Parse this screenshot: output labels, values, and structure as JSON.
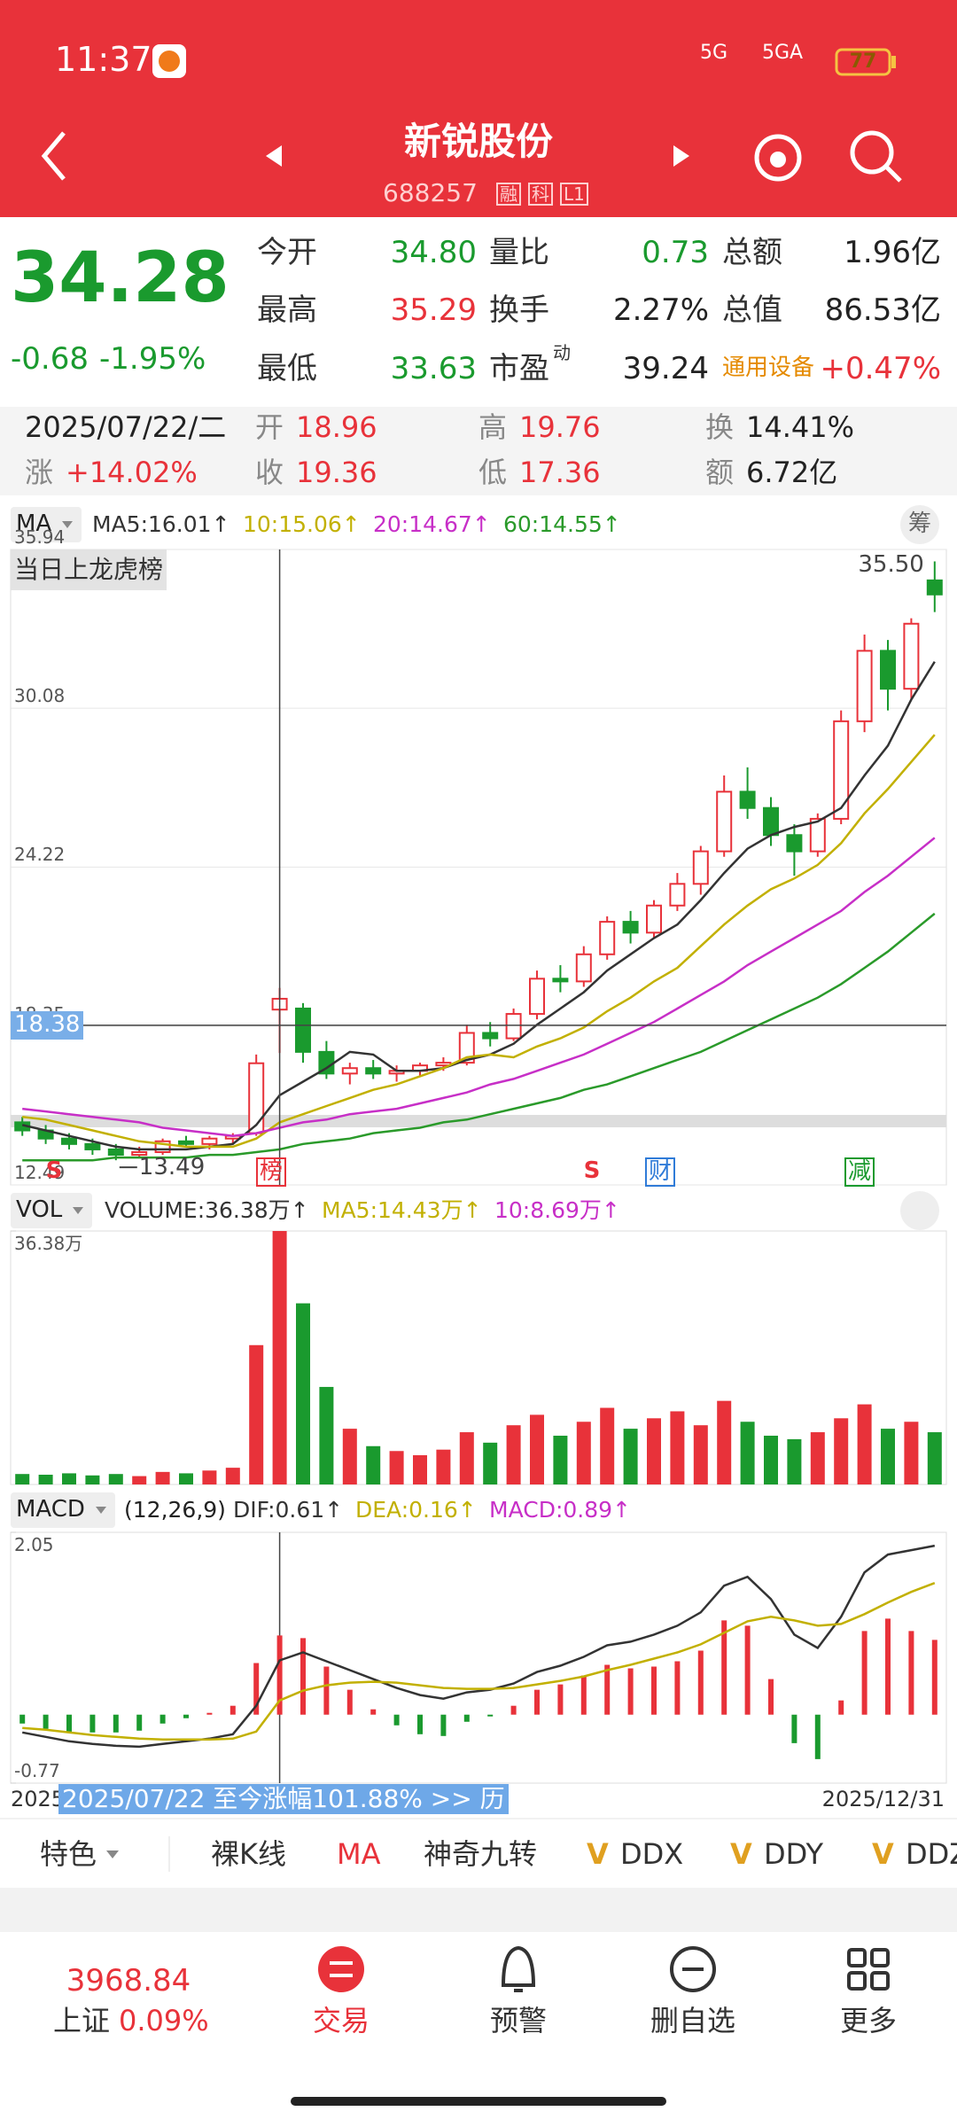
{
  "status_bar": {
    "time": "11:37",
    "network1": "5G",
    "network2": "5GA",
    "battery": "77"
  },
  "header": {
    "title": "新锐股份",
    "code": "688257",
    "badges": [
      "融",
      "科",
      "L1"
    ]
  },
  "quote": {
    "price": "34.28",
    "change": "-0.68",
    "change_pct": "-1.95%",
    "stats": [
      [
        {
          "label": "今开",
          "value": "34.80"
        },
        {
          "label": "量比",
          "value": "0.73"
        },
        {
          "label": "总额",
          "value": "1.96亿"
        }
      ],
      [
        {
          "label": "最高",
          "value": "35.29"
        },
        {
          "label": "换手",
          "value": "2.27%"
        },
        {
          "label": "总值",
          "value": "86.53亿"
        }
      ],
      [
        {
          "label": "最低",
          "value": "33.63"
        },
        {
          "label": "市盈",
          "label_sup": "动",
          "value": "39.24"
        },
        {
          "label": "通用设备",
          "value": "+0.47%"
        }
      ]
    ]
  },
  "day_info": {
    "date": "2025/07/22/二",
    "items": [
      {
        "label": "开",
        "value": "18.96"
      },
      {
        "label": "高",
        "value": "19.76"
      },
      {
        "label": "换",
        "value": "14.41%"
      },
      {
        "label": "涨",
        "value": "+14.02%"
      },
      {
        "label": "收",
        "value": "19.36"
      },
      {
        "label": "低",
        "value": "17.36"
      },
      {
        "label": "额",
        "value": "6.72亿"
      }
    ]
  },
  "chart_data": [
    {
      "type": "candlestick",
      "indicator": "MA",
      "button": "筹",
      "tag": "当日上龙虎榜",
      "high_label": "35.50",
      "low_label": "13.49",
      "cursor_price": 18.38,
      "up_color": "#e8323a",
      "down_color": "#1a9a2e",
      "open": [
        14.8,
        14.5,
        14.2,
        14.0,
        13.8,
        13.6,
        13.7,
        14.1,
        14.0,
        14.2,
        14.4,
        18.96,
        19.0,
        17.4,
        16.6,
        16.8,
        16.6,
        16.7,
        16.9,
        17.0,
        18.1,
        17.9,
        18.8,
        20.1,
        20.0,
        21.0,
        22.2,
        21.8,
        22.8,
        23.6,
        24.8,
        27.0,
        26.4,
        25.4,
        24.8,
        26.0,
        29.6,
        32.2,
        30.8,
        34.8
      ],
      "high": [
        15.0,
        14.7,
        14.4,
        14.2,
        14.0,
        13.9,
        14.2,
        14.3,
        14.3,
        14.4,
        17.3,
        19.76,
        19.2,
        17.8,
        17.0,
        17.1,
        16.9,
        17.0,
        17.2,
        18.4,
        18.5,
        19.0,
        20.4,
        20.6,
        21.3,
        22.4,
        22.6,
        23.0,
        24.0,
        25.0,
        27.6,
        27.9,
        26.8,
        25.8,
        26.2,
        30.0,
        32.8,
        32.6,
        33.4,
        35.5
      ],
      "low": [
        14.3,
        14.0,
        13.8,
        13.6,
        13.4,
        13.49,
        13.6,
        13.9,
        13.8,
        14.0,
        14.3,
        17.36,
        17.0,
        16.4,
        16.2,
        16.4,
        16.3,
        16.5,
        16.7,
        16.9,
        17.6,
        17.8,
        18.6,
        19.6,
        19.8,
        20.8,
        21.4,
        21.6,
        22.6,
        23.2,
        24.6,
        26.0,
        25.0,
        23.9,
        24.6,
        25.8,
        29.2,
        30.0,
        30.4,
        33.63
      ],
      "close": [
        14.5,
        14.2,
        14.0,
        13.8,
        13.6,
        13.7,
        14.1,
        14.0,
        14.2,
        14.3,
        16.98,
        19.36,
        17.4,
        16.6,
        16.8,
        16.6,
        16.7,
        16.9,
        17.0,
        18.1,
        17.9,
        18.8,
        20.1,
        20.0,
        21.0,
        22.2,
        21.8,
        22.8,
        23.6,
        24.8,
        27.0,
        26.4,
        25.4,
        24.8,
        26.0,
        29.6,
        32.2,
        30.8,
        33.2,
        34.28
      ],
      "ma": [
        {
          "name": "MA5:16.01↑",
          "color": "#333333",
          "values": [
            14.7,
            14.5,
            14.3,
            14.1,
            13.9,
            13.8,
            13.8,
            13.8,
            13.9,
            14.0,
            14.7,
            15.8,
            16.3,
            16.8,
            17.4,
            17.3,
            16.7,
            16.7,
            16.8,
            17.1,
            17.3,
            17.7,
            18.4,
            19.0,
            19.6,
            20.4,
            21.0,
            21.6,
            22.1,
            23.0,
            24.0,
            24.9,
            25.4,
            25.7,
            25.9,
            26.4,
            27.6,
            28.7,
            30.4,
            31.8
          ]
        },
        {
          "name": "10:15.06↑",
          "color": "#c2b000",
          "values": [
            15.0,
            14.9,
            14.7,
            14.5,
            14.3,
            14.1,
            14.0,
            13.9,
            13.9,
            13.9,
            14.2,
            14.8,
            15.1,
            15.4,
            15.7,
            16.0,
            16.2,
            16.5,
            16.8,
            17.2,
            17.3,
            17.2,
            17.6,
            17.9,
            18.3,
            18.9,
            19.4,
            20.0,
            20.5,
            21.3,
            22.1,
            22.8,
            23.4,
            23.8,
            24.3,
            25.1,
            26.2,
            27.1,
            28.1,
            29.1
          ]
        },
        {
          "name": "20:14.67↑",
          "color": "#c72fc7",
          "values": [
            15.3,
            15.2,
            15.1,
            15.0,
            14.9,
            14.8,
            14.6,
            14.5,
            14.4,
            14.3,
            14.4,
            14.6,
            14.8,
            14.9,
            15.1,
            15.2,
            15.3,
            15.5,
            15.7,
            15.9,
            16.2,
            16.4,
            16.7,
            17.0,
            17.3,
            17.7,
            18.1,
            18.5,
            19.0,
            19.5,
            20.0,
            20.6,
            21.1,
            21.6,
            22.1,
            22.6,
            23.3,
            23.9,
            24.6,
            25.3
          ]
        },
        {
          "name": "60:14.55↑",
          "color": "#2a9a2a",
          "values": [
            13.4,
            13.4,
            13.4,
            13.4,
            13.5,
            13.5,
            13.5,
            13.5,
            13.6,
            13.6,
            13.7,
            13.8,
            14.0,
            14.1,
            14.2,
            14.4,
            14.5,
            14.6,
            14.8,
            14.9,
            15.1,
            15.3,
            15.5,
            15.7,
            16.0,
            16.2,
            16.5,
            16.8,
            17.1,
            17.4,
            17.8,
            18.2,
            18.6,
            19.0,
            19.4,
            19.9,
            20.5,
            21.1,
            21.8,
            22.5
          ]
        }
      ],
      "ylim": [
        12.49,
        35.94
      ],
      "yticks": [
        35.94,
        30.08,
        24.22,
        18.35,
        12.49
      ],
      "grid": true,
      "signals": [
        "S",
        "榜",
        "S",
        "财",
        "减"
      ]
    },
    {
      "type": "bar",
      "indicator": "VOL",
      "legend": [
        {
          "name": "VOLUME:36.38万↑",
          "color": "#333333"
        },
        {
          "name": "MA5:14.43万↑",
          "color": "#c2b000"
        },
        {
          "name": "10:8.69万↑",
          "color": "#c72fc7"
        }
      ],
      "values": [
        1.5,
        1.4,
        1.6,
        1.3,
        1.5,
        1.2,
        1.8,
        1.6,
        2.0,
        2.4,
        20.0,
        36.38,
        26.0,
        14.0,
        8.0,
        5.5,
        4.8,
        4.2,
        5.0,
        7.5,
        6.0,
        8.5,
        10.0,
        7.0,
        9.0,
        11.0,
        8.0,
        9.5,
        10.5,
        8.5,
        12.0,
        9.0,
        7.0,
        6.5,
        7.5,
        9.5,
        11.5,
        8.0,
        9.0,
        7.5
      ],
      "ylim": [
        0,
        36.38
      ],
      "yticks": [
        {
          "value": 36.38,
          "label": "36.38万"
        }
      ]
    },
    {
      "type": "macd",
      "indicator": "MACD",
      "params": "(12,26,9)",
      "series": [
        {
          "name": "DIF:0.61↑",
          "color": "#333333",
          "values": [
            -0.2,
            -0.25,
            -0.3,
            -0.33,
            -0.35,
            -0.36,
            -0.33,
            -0.3,
            -0.27,
            -0.22,
            0.1,
            0.61,
            0.7,
            0.6,
            0.5,
            0.4,
            0.3,
            0.22,
            0.18,
            0.25,
            0.28,
            0.35,
            0.48,
            0.55,
            0.65,
            0.78,
            0.82,
            0.9,
            1.0,
            1.15,
            1.45,
            1.55,
            1.3,
            0.9,
            0.75,
            1.1,
            1.6,
            1.8,
            1.85,
            1.9
          ]
        },
        {
          "name": "DEA:0.16↑",
          "color": "#c2b000",
          "values": [
            -0.15,
            -0.17,
            -0.2,
            -0.23,
            -0.25,
            -0.27,
            -0.28,
            -0.28,
            -0.28,
            -0.27,
            -0.19,
            0.16,
            0.27,
            0.33,
            0.36,
            0.37,
            0.36,
            0.33,
            0.3,
            0.29,
            0.29,
            0.3,
            0.34,
            0.38,
            0.43,
            0.5,
            0.56,
            0.63,
            0.7,
            0.79,
            0.92,
            1.05,
            1.1,
            1.06,
            1.0,
            1.02,
            1.13,
            1.26,
            1.38,
            1.48
          ]
        },
        {
          "name": "MACD:0.89↑",
          "color": "#c72fc7",
          "values": [
            -0.1,
            -0.16,
            -0.2,
            -0.2,
            -0.2,
            -0.18,
            -0.1,
            -0.04,
            0.02,
            0.1,
            0.58,
            0.89,
            0.86,
            0.54,
            0.28,
            0.06,
            -0.12,
            -0.22,
            -0.24,
            -0.08,
            -0.02,
            0.1,
            0.28,
            0.34,
            0.44,
            0.56,
            0.52,
            0.54,
            0.6,
            0.72,
            1.06,
            1.0,
            0.4,
            -0.32,
            -0.5,
            0.16,
            0.94,
            1.08,
            0.94,
            0.84
          ]
        }
      ],
      "ylim": [
        -0.77,
        2.05
      ],
      "yticks": [
        2.05,
        -0.77
      ],
      "xlabels": [
        "2025",
        "2025/12/31"
      ],
      "banner": "2025/07/22 至今涨幅101.88%  >> 历"
    }
  ],
  "toolbar": [
    {
      "label": "特色"
    },
    {
      "label": "裸K线"
    },
    {
      "label": "MA"
    },
    {
      "label": "神奇九转"
    },
    {
      "prefix": "V",
      "label": "DDX"
    },
    {
      "prefix": "V",
      "label": "DDY"
    },
    {
      "prefix": "V",
      "label": "DDZ"
    }
  ],
  "nav": {
    "index_value": "3968.84",
    "index_name": "上证",
    "index_change": "0.09%",
    "tabs": [
      "交易",
      "预警",
      "删自选",
      "更多"
    ]
  }
}
